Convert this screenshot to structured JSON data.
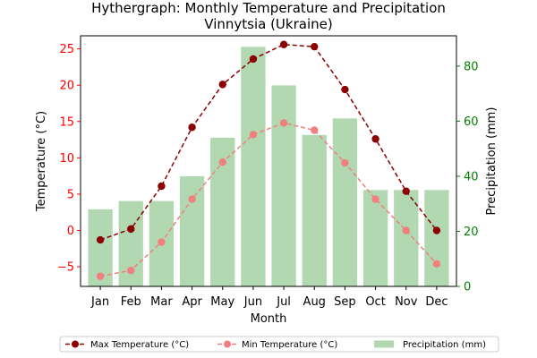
{
  "chart_data": {
    "type": "bar+line",
    "title_line1": "Hythergraph: Monthly Temperature and Precipitation",
    "title_line2": "Vinnytsia (Ukraine)",
    "xlabel": "Month",
    "ylabel_left": "Temperature (°C)",
    "ylabel_right": "Precipitation (mm)",
    "categories": [
      "Jan",
      "Feb",
      "Mar",
      "Apr",
      "May",
      "Jun",
      "Jul",
      "Aug",
      "Sep",
      "Oct",
      "Nov",
      "Dec"
    ],
    "ylim_left": [
      -7.7,
      26.8
    ],
    "yticks_left": [
      -5,
      0,
      5,
      10,
      15,
      20,
      25
    ],
    "ylim_right": [
      0,
      91
    ],
    "yticks_right": [
      0,
      20,
      40,
      60,
      80
    ],
    "series": [
      {
        "name": "Max Temperature (°C)",
        "axis": "left",
        "kind": "line",
        "color": "#8b0000",
        "dash": true,
        "values": [
          -1.3,
          0.2,
          6.1,
          14.2,
          20.1,
          23.6,
          25.6,
          25.3,
          19.4,
          12.6,
          5.4,
          0.0
        ]
      },
      {
        "name": "Min Temperature (°C)",
        "axis": "left",
        "kind": "line",
        "color": "#f08080",
        "dash": true,
        "values": [
          -6.3,
          -5.5,
          -1.6,
          4.3,
          9.4,
          13.2,
          14.8,
          13.8,
          9.3,
          4.3,
          0.0,
          -4.6
        ]
      },
      {
        "name": "Precipitation (mm)",
        "axis": "right",
        "kind": "bar",
        "color": "#b2d8b2",
        "values": [
          28,
          31,
          31,
          40,
          54,
          87,
          73,
          55,
          61,
          35,
          35,
          35
        ]
      }
    ],
    "left_axis_color": "#ff0000",
    "right_axis_color": "#008000",
    "legend_position": "bottom",
    "grid": false
  }
}
